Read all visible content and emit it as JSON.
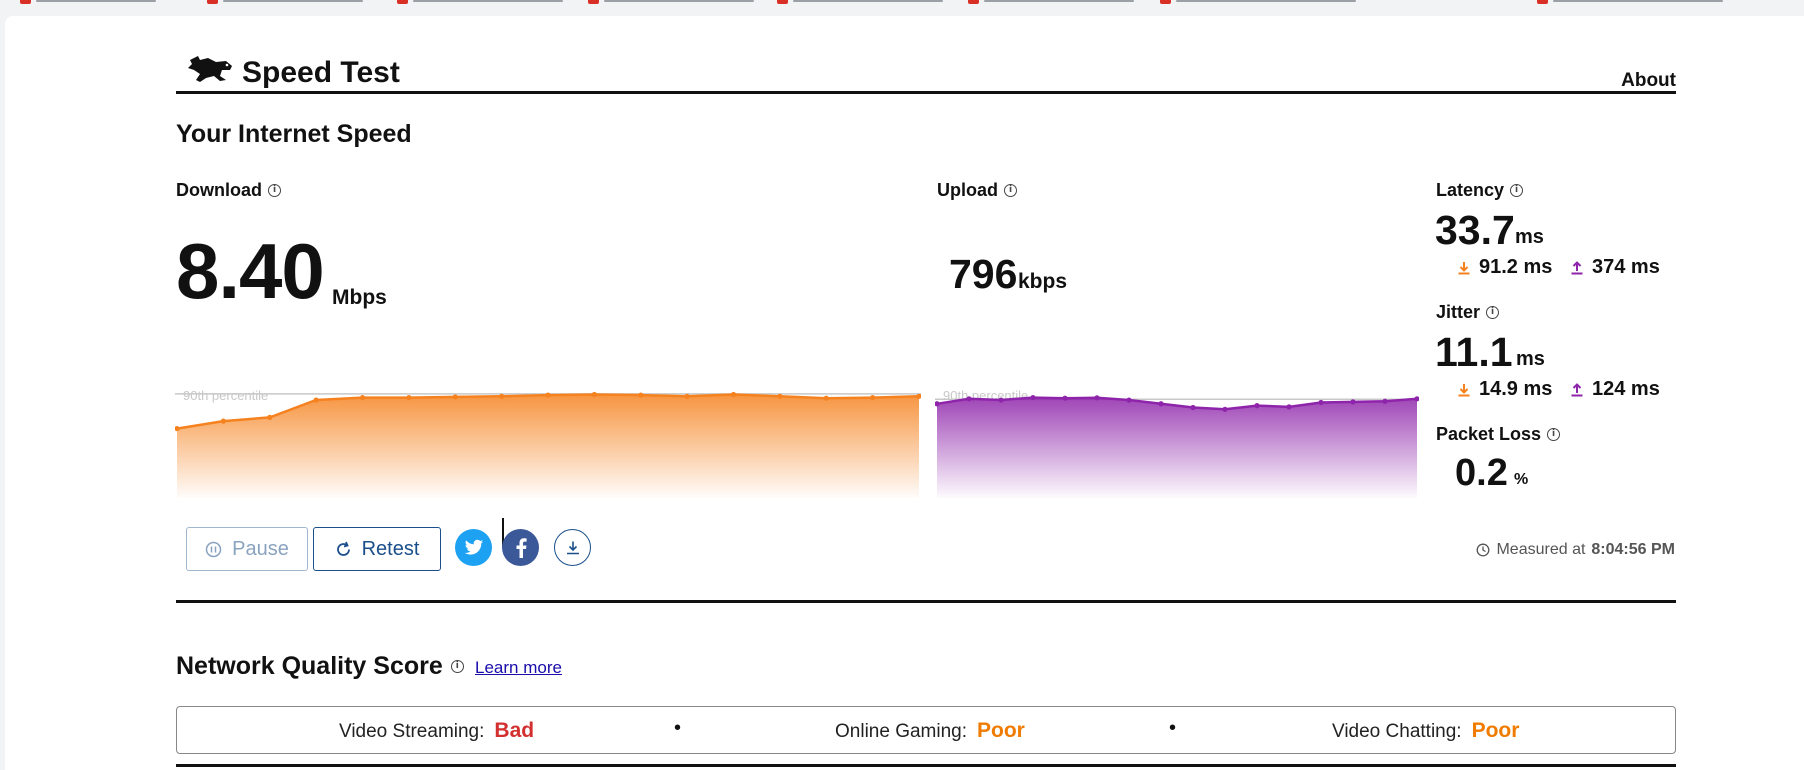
{
  "app": {
    "title": "Speed Test",
    "about_label": "About"
  },
  "section": {
    "title": "Your Internet Speed"
  },
  "download": {
    "label": "Download",
    "value": "8.40",
    "unit": "Mbps"
  },
  "upload": {
    "label": "Upload",
    "value": "796",
    "unit": "kbps"
  },
  "latency": {
    "label": "Latency",
    "value": "33.7",
    "unit": "ms",
    "down": "91.2 ms",
    "up": "374 ms"
  },
  "jitter": {
    "label": "Jitter",
    "value": "11.1",
    "unit": "ms",
    "down": "14.9 ms",
    "up": "124 ms"
  },
  "packet_loss": {
    "label": "Packet Loss",
    "value": "0.2",
    "unit": "%"
  },
  "percentile_label": "90th percentile",
  "controls": {
    "pause_label": "Pause",
    "retest_label": "Retest"
  },
  "measured": {
    "prefix": "Measured at",
    "time": "8:04:56 PM"
  },
  "quality": {
    "title": "Network Quality Score",
    "learn_more": "Learn more",
    "items": [
      {
        "label": "Video Streaming:",
        "value": "Bad"
      },
      {
        "label": "Online Gaming:",
        "value": "Poor"
      },
      {
        "label": "Video Chatting:",
        "value": "Poor"
      }
    ],
    "separator": "•"
  },
  "colors": {
    "download": "#f5821f",
    "upload": "#8e24aa",
    "bad": "#d32f2f",
    "poor": "#ef7c00",
    "link": "#1a4f8b"
  },
  "icons": {
    "logo": "rabbit-logo-icon",
    "info": "info-icon",
    "pause": "pause-circle-icon",
    "retest": "refresh-icon",
    "twitter": "twitter-icon",
    "facebook": "facebook-icon",
    "download": "download-icon",
    "clock": "clock-icon"
  },
  "chart_data": [
    {
      "type": "area",
      "series": [
        {
          "values": [
            5.6,
            6.2,
            6.5,
            7.9,
            8.1,
            8.1,
            8.15,
            8.2,
            8.3,
            8.35,
            8.3,
            8.2,
            8.35,
            8.2,
            8.05,
            8.1,
            8.2
          ]
        }
      ],
      "ylim": [
        0,
        10
      ],
      "reference_value": 8.4
    },
    {
      "type": "area",
      "series": [
        {
          "values": [
            760,
            800,
            790,
            810,
            805,
            808,
            790,
            760,
            730,
            715,
            745,
            735,
            770,
            775,
            780,
            800
          ]
        }
      ],
      "ylim": [
        0,
        1000
      ],
      "reference_value": 796
    }
  ]
}
